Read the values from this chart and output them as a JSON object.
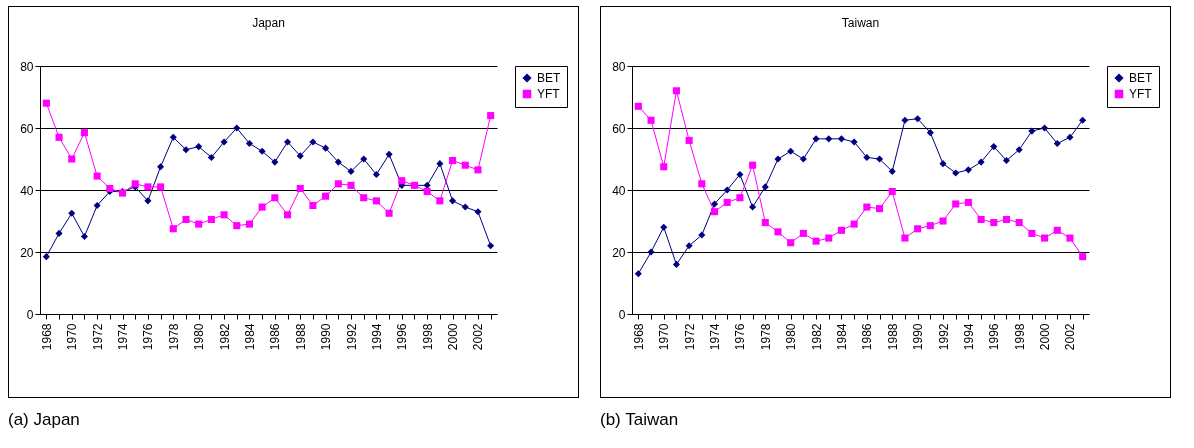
{
  "chart_data": [
    {
      "type": "line",
      "title": "Japan",
      "annotations": [
        "(a) Japan"
      ],
      "categories": [
        "1968",
        null,
        "1970",
        null,
        "1972",
        null,
        "1974",
        null,
        "1976",
        null,
        "1978",
        null,
        "1980",
        null,
        "1982",
        null,
        "1984",
        null,
        "1986",
        null,
        "1988",
        null,
        "1990",
        null,
        "1992",
        null,
        "1994",
        null,
        "1996",
        null,
        "1998",
        null,
        "2000",
        null,
        "2002",
        null
      ],
      "series": [
        {
          "name": "BET",
          "color": "#000080",
          "marker": "diamond",
          "values": [
            18.5,
            26,
            32.5,
            25,
            35,
            39.5,
            39.5,
            41,
            36.5,
            47.5,
            57,
            53,
            54,
            50.5,
            55.5,
            60,
            55,
            52.5,
            49,
            55.5,
            51,
            55.5,
            53.5,
            49,
            46,
            50,
            45,
            51.5,
            41.5,
            41.5,
            41.5,
            48.5,
            36.5,
            34.5,
            33,
            22
          ]
        },
        {
          "name": "YFT",
          "color": "#ff00ff",
          "marker": "square",
          "values": [
            68,
            57,
            50,
            58.5,
            44.5,
            40.5,
            39,
            42,
            41,
            41,
            27.5,
            30.5,
            29,
            30.5,
            32,
            28.5,
            29,
            34.5,
            37.5,
            32,
            40.5,
            35,
            38,
            42,
            41.5,
            37.5,
            36.5,
            32.5,
            43,
            41.5,
            39.5,
            36.5,
            49.5,
            48,
            46.5,
            64
          ]
        }
      ],
      "ylim": [
        0,
        80
      ],
      "yticks": [
        0,
        20,
        40,
        60,
        80
      ],
      "grid": "y",
      "legend": "right"
    },
    {
      "type": "line",
      "title": "Taiwan",
      "annotations": [
        "(b) Taiwan"
      ],
      "categories": [
        "1968",
        null,
        "1970",
        null,
        "1972",
        null,
        "1974",
        null,
        "1976",
        null,
        "1978",
        null,
        "1980",
        null,
        "1982",
        null,
        "1984",
        null,
        "1986",
        null,
        "1988",
        null,
        "1990",
        null,
        "1992",
        null,
        "1994",
        null,
        "1996",
        null,
        "1998",
        null,
        "2000",
        null,
        "2002",
        null
      ],
      "series": [
        {
          "name": "BET",
          "color": "#000080",
          "marker": "diamond",
          "values": [
            13,
            20,
            28,
            16,
            22,
            25.5,
            35.5,
            40,
            45,
            34.5,
            41,
            50,
            52.5,
            50,
            56.5,
            56.5,
            56.5,
            55.5,
            50.5,
            50,
            46,
            62.5,
            63,
            58.5,
            48.5,
            45.5,
            46.5,
            49,
            54,
            49.5,
            53,
            59,
            60,
            55,
            57,
            62.5
          ]
        },
        {
          "name": "YFT",
          "color": "#ff00ff",
          "marker": "square",
          "values": [
            67,
            62.5,
            47.5,
            72,
            56,
            42,
            33,
            36,
            37.5,
            48,
            29.5,
            26.5,
            23,
            26,
            23.5,
            24.5,
            27,
            29,
            34.5,
            34,
            39.5,
            24.5,
            27.5,
            28.5,
            30,
            35.5,
            36,
            30.5,
            29.5,
            30.5,
            29.5,
            26,
            24.5,
            27,
            24.5,
            18.5
          ]
        }
      ],
      "ylim": [
        0,
        80
      ],
      "yticks": [
        0,
        20,
        40,
        60,
        80
      ],
      "grid": "y",
      "legend": "right"
    }
  ]
}
